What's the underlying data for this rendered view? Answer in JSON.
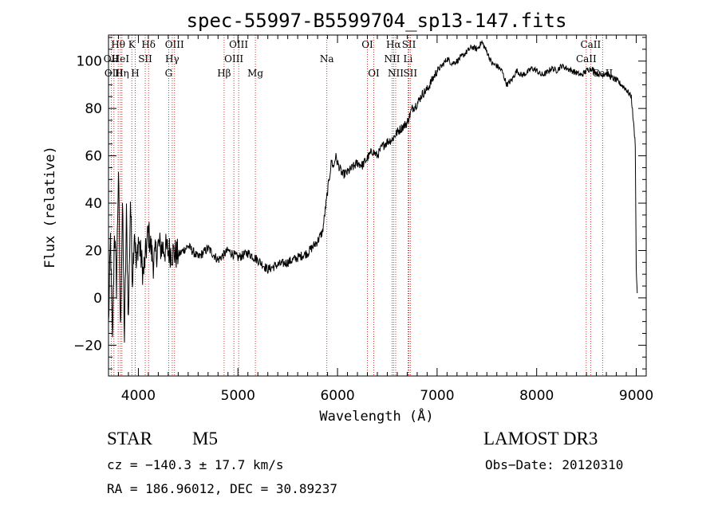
{
  "chart_data": {
    "type": "line",
    "title": "spec-55997-B5599704_sp13-147.fits",
    "xlabel": "Wavelength (Å)",
    "ylabel": "Flux (relative)",
    "xlim": [
      3700,
      9100
    ],
    "ylim": [
      -33,
      111
    ],
    "x_ticks": [
      4000,
      5000,
      6000,
      7000,
      8000,
      9000
    ],
    "y_ticks": [
      -20,
      0,
      20,
      40,
      60,
      80,
      100
    ],
    "series": [
      {
        "name": "Flux",
        "x": [
          3700,
          3720,
          3740,
          3760,
          3780,
          3800,
          3820,
          3840,
          3860,
          3880,
          3900,
          3920,
          3940,
          3960,
          3980,
          4000,
          4050,
          4100,
          4150,
          4200,
          4300,
          4400,
          4500,
          4600,
          4700,
          4800,
          4900,
          5000,
          5100,
          5200,
          5300,
          5400,
          5500,
          5600,
          5700,
          5800,
          5850,
          5900,
          5940,
          5960,
          5980,
          6000,
          6050,
          6100,
          6150,
          6200,
          6250,
          6300,
          6350,
          6400,
          6450,
          6500,
          6550,
          6600,
          6650,
          6700,
          6750,
          6800,
          6850,
          6900,
          6950,
          7000,
          7050,
          7100,
          7150,
          7200,
          7250,
          7300,
          7350,
          7400,
          7450,
          7500,
          7550,
          7600,
          7650,
          7700,
          7750,
          7800,
          7850,
          7900,
          7950,
          8000,
          8050,
          8100,
          8150,
          8200,
          8250,
          8300,
          8350,
          8400,
          8450,
          8500,
          8550,
          8600,
          8650,
          8700,
          8750,
          8800,
          8850,
          8900,
          8950,
          8990,
          9000,
          9010
        ],
        "y": [
          -12,
          25,
          -20,
          30,
          5,
          55,
          -15,
          40,
          -18,
          35,
          -10,
          42,
          8,
          30,
          12,
          25,
          10,
          28,
          15,
          22,
          20,
          18,
          22,
          17,
          21,
          16,
          20,
          17,
          19,
          16,
          12,
          14,
          15,
          17,
          19,
          24,
          28,
          45,
          58,
          55,
          60,
          57,
          52,
          53,
          55,
          57,
          56,
          59,
          62,
          60,
          64,
          66,
          67,
          70,
          72,
          74,
          80,
          82,
          86,
          88,
          92,
          96,
          98,
          101,
          99,
          100,
          102,
          104,
          106,
          105,
          108,
          104,
          99,
          98,
          96,
          90,
          92,
          96,
          94,
          95,
          97,
          96,
          94,
          95,
          97,
          96,
          98,
          97,
          96,
          95,
          94,
          96,
          97,
          95,
          94,
          95,
          93,
          92,
          90,
          88,
          85,
          65,
          12,
          2
        ]
      }
    ],
    "line_markers": [
      {
        "label": "Hθ",
        "x": 3797,
        "row": 0
      },
      {
        "label": "OII",
        "x": 3727,
        "row": 1
      },
      {
        "label": "OIII",
        "x": 3755,
        "row": 2
      },
      {
        "label": "HeI",
        "x": 3820,
        "row": 1
      },
      {
        "label": "Hη",
        "x": 3835,
        "row": 2
      },
      {
        "label": "K",
        "x": 3934,
        "row": 0
      },
      {
        "label": "SII",
        "x": 4069,
        "row": 1
      },
      {
        "label": "H",
        "x": 3968,
        "row": 2
      },
      {
        "label": "Hδ",
        "x": 4102,
        "row": 0
      },
      {
        "label": "OIII",
        "x": 4363,
        "row": 0
      },
      {
        "label": "Hγ",
        "x": 4340,
        "row": 1
      },
      {
        "label": "G",
        "x": 4304,
        "row": 2
      },
      {
        "label": "Hβ",
        "x": 4861,
        "row": 2
      },
      {
        "label": "OIII",
        "x": 5007,
        "row": 0
      },
      {
        "label": "OIII",
        "x": 4959,
        "row": 1
      },
      {
        "label": "Mg",
        "x": 5175,
        "row": 2
      },
      {
        "label": "Na",
        "x": 5893,
        "row": 1
      },
      {
        "label": "OI",
        "x": 6300,
        "row": 0
      },
      {
        "label": "OI",
        "x": 6364,
        "row": 2
      },
      {
        "label": "Hα",
        "x": 6563,
        "row": 0
      },
      {
        "label": "NII",
        "x": 6548,
        "row": 1
      },
      {
        "label": "NII",
        "x": 6584,
        "row": 2
      },
      {
        "label": "SII",
        "x": 6717,
        "row": 0
      },
      {
        "label": "Li",
        "x": 6708,
        "row": 1
      },
      {
        "label": "SII",
        "x": 6731,
        "row": 2
      },
      {
        "label": "CaII",
        "x": 8542,
        "row": 0
      },
      {
        "label": "CaII",
        "x": 8498,
        "row": 1
      },
      {
        "label": "CaII",
        "x": 8662,
        "row": 2
      }
    ]
  },
  "info": {
    "object_class": "STAR",
    "subclass": "M5",
    "survey": "LAMOST DR3",
    "redshift": "cz = −140.3 ± 17.7 km/s",
    "obs_date": "Obs−Date: 20120310",
    "coords": "RA = 186.96012, DEC =  30.89237"
  },
  "colors": {
    "line": "#000000",
    "marker": "#cc0000",
    "background": "#ffffff"
  }
}
